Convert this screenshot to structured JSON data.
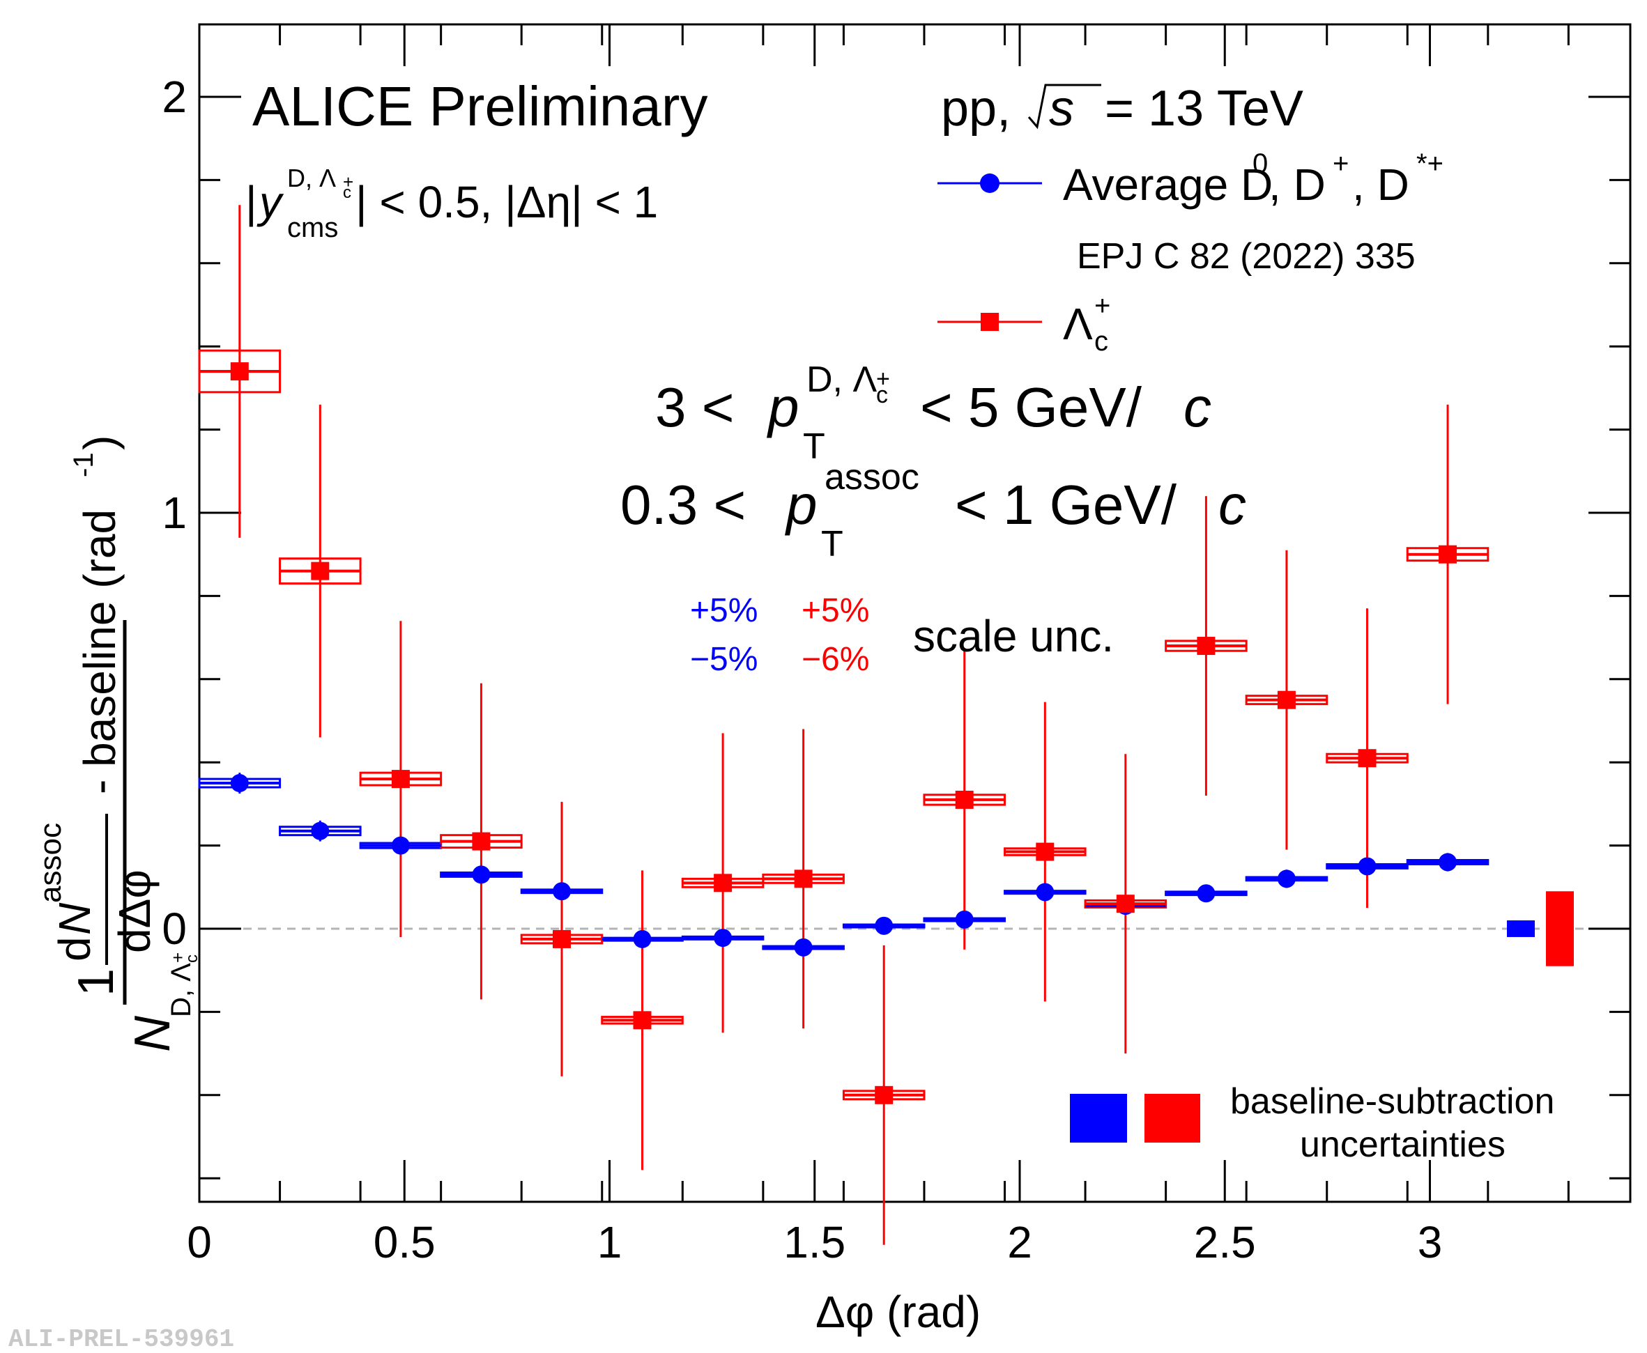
{
  "chart_data": {
    "type": "scatter",
    "title": "ALICE Preliminary",
    "collision_label": "pp,",
    "energy_label": "= 13 TeV",
    "energy_symbol": "s",
    "kinematic_cut": "|y_cms^{D, Λc+}| < 0.5, |Δη| < 1",
    "kinematic_cut_value": "| < 0.5, |Δη| < 1",
    "pt_trigger_label": "3 < p_T^{D, Λc+} < 5 GeV/c",
    "pt_trigger_lo": "3 <",
    "pt_trigger_hi": "< 5 GeV/",
    "pt_assoc_label": "0.3 < p_T^{assoc} < 1 GeV/c",
    "pt_assoc_lo": "0.3 <",
    "pt_assoc_hi": "< 1 GeV/",
    "xlabel": "Δφ (rad)",
    "ylabel": "1/N_{D, Λc+} dN^{assoc}/dΔφ - baseline (rad^-1)",
    "ylabel_suffix": "- baseline (rad",
    "xlim": [
      0,
      3.4907
    ],
    "ylim": [
      -0.65,
      2.2
    ],
    "xticks": [
      0,
      0.5,
      1,
      1.5,
      2,
      2.5,
      3
    ],
    "xtick_labels": [
      "0",
      "0.5",
      "1",
      "1.5",
      "2",
      "2.5",
      "3"
    ],
    "yticks": [
      0,
      1,
      2
    ],
    "ytick_labels": [
      "0",
      "1",
      "2"
    ],
    "baseline_y": 0,
    "series": [
      {
        "name": "Average D0, D+, D*+",
        "legend_label": "Average D",
        "reference": "EPJ C 82 (2022) 335",
        "color": "#0000ff",
        "marker": "circle",
        "x": [
          0.0982,
          0.2945,
          0.4909,
          0.6872,
          0.8836,
          1.0799,
          1.2763,
          1.4726,
          1.669,
          1.8653,
          2.0617,
          2.258,
          2.4544,
          2.6507,
          2.8471,
          3.0434
        ],
        "y": [
          0.35,
          0.235,
          0.2,
          0.13,
          0.09,
          -0.025,
          -0.022,
          -0.045,
          0.007,
          0.022,
          0.088,
          0.055,
          0.085,
          0.12,
          0.15,
          0.16
        ],
        "yerr": [
          0.025,
          0.025,
          0.025,
          0.025,
          0.02,
          0.02,
          0.02,
          0.02,
          0.02,
          0.02,
          0.02,
          0.02,
          0.02,
          0.022,
          0.022,
          0.022
        ],
        "syst": [
          0.01,
          0.01,
          0.006,
          0.005,
          0.004,
          0.003,
          0.003,
          0.003,
          0.003,
          0.003,
          0.003,
          0.003,
          0.004,
          0.004,
          0.005,
          0.005
        ],
        "scale_unc_up": "+5%",
        "scale_unc_down": "−5%"
      },
      {
        "name": "Λc+",
        "color": "#ff0000",
        "marker": "square",
        "x": [
          0.0982,
          0.2945,
          0.4909,
          0.6872,
          0.8836,
          1.0799,
          1.2763,
          1.4726,
          1.669,
          1.8653,
          2.0617,
          2.258,
          2.4544,
          2.6507,
          2.8471,
          3.0434
        ],
        "y": [
          1.34,
          0.86,
          0.36,
          0.21,
          -0.025,
          -0.22,
          0.11,
          0.12,
          -0.4,
          0.31,
          0.185,
          0.06,
          0.68,
          0.55,
          0.41,
          0.9
        ],
        "yerr": [
          0.4,
          0.4,
          0.38,
          0.38,
          0.33,
          0.36,
          0.36,
          0.36,
          0.36,
          0.36,
          0.36,
          0.36,
          0.36,
          0.36,
          0.36,
          0.36
        ],
        "syst": [
          0.05,
          0.03,
          0.015,
          0.015,
          0.01,
          0.008,
          0.01,
          0.01,
          0.01,
          0.012,
          0.008,
          0.008,
          0.012,
          0.01,
          0.01,
          0.015
        ],
        "scale_unc_up": "+5%",
        "scale_unc_down": "−6%"
      }
    ],
    "scale_unc_label": "scale unc.",
    "baseline_unc": {
      "label_line1": "baseline-subtraction",
      "label_line2": "uncertainties",
      "blue_range": [
        -0.02,
        0.02
      ],
      "red_range": [
        -0.09,
        0.09
      ]
    }
  },
  "watermark": "ALI-PREL-539961"
}
